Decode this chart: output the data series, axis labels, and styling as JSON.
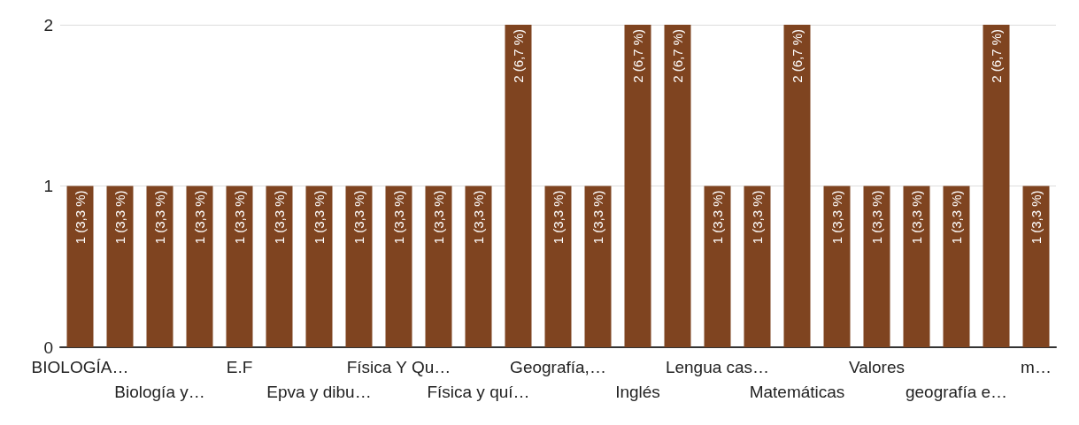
{
  "chart_data": {
    "type": "bar",
    "categories": [
      "BIOLOGÍA…",
      null,
      "Biología y…",
      null,
      "E.F",
      null,
      "Epva y dibu…",
      null,
      "Física Y Qu…",
      null,
      "Física y quí…",
      null,
      "Geografía,…",
      null,
      "Inglés",
      null,
      "Lengua cas…",
      null,
      "Matemáticas",
      null,
      "Valores",
      null,
      "geografía e…",
      null,
      "m…"
    ],
    "values": [
      1,
      1,
      1,
      1,
      1,
      1,
      1,
      1,
      1,
      1,
      1,
      2,
      1,
      1,
      2,
      2,
      1,
      1,
      2,
      1,
      1,
      1,
      1,
      2,
      1
    ],
    "value_labels": [
      "1 (3,3 %)",
      "1 (3,3 %)",
      "1 (3,3 %)",
      "1 (3,3 %)",
      "1 (3,3 %)",
      "1 (3,3 %)",
      "1 (3,3 %)",
      "1 (3,3 %)",
      "1 (3,3 %)",
      "1 (3,3 %)",
      "1 (3,3 %)",
      "2 (6,7 %)",
      "1 (3,3 %)",
      "1 (3,3 %)",
      "2 (6,7 %)",
      "2 (6,7 %)",
      "1 (3,3 %)",
      "1 (3,3 %)",
      "2 (6,7 %)",
      "1 (3,3 %)",
      "1 (3,3 %)",
      "1 (3,3 %)",
      "1 (3,3 %)",
      "2 (6,7 %)",
      "1 (3,3 %)"
    ],
    "color": "#7f4420",
    "ylim": [
      0,
      2
    ],
    "yticks": [
      0,
      1,
      2
    ],
    "grid": "y"
  }
}
